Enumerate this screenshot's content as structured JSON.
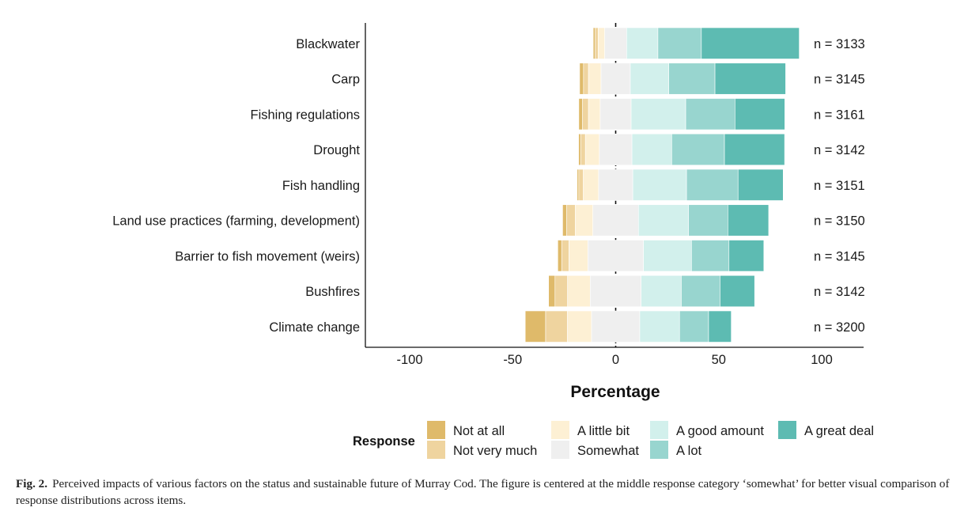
{
  "chart_data": {
    "type": "bar",
    "subtype": "diverging-stacked-horizontal (likert)",
    "orientation": "horizontal",
    "centered_on": "Somewhat",
    "xlabel": "Percentage",
    "ylabel": "",
    "xlim": [
      -122,
      120
    ],
    "xticks": [
      -100,
      -50,
      0,
      50,
      100
    ],
    "xtick_labels": [
      "-100",
      "-50",
      "0",
      "50",
      "100"
    ],
    "grid": false,
    "zero_line": "dashed",
    "legend": {
      "title": "Response",
      "placement": "bottom",
      "entries": [
        "Not at all",
        "Not very much",
        "A little bit",
        "Somewhat",
        "A good amount",
        "A lot",
        "A great deal"
      ]
    },
    "series": [
      {
        "name": "Not at all",
        "color": "#dfba6a"
      },
      {
        "name": "Not very much",
        "color": "#efd49f"
      },
      {
        "name": "A little bit",
        "color": "#fdf0d4"
      },
      {
        "name": "Somewhat",
        "color": "#efefef"
      },
      {
        "name": "A good amount",
        "color": "#d2f0ec"
      },
      {
        "name": "A lot",
        "color": "#98d5cf"
      },
      {
        "name": "A great deal",
        "color": "#5dbbb2"
      }
    ],
    "categories": [
      "Blackwater",
      "Carp",
      "Fishing regulations",
      "Drought",
      "Fish handling",
      "Land use practices (farming, development)",
      "Barrier to fish movement (weirs)",
      "Bushfires",
      "Climate change"
    ],
    "n_labels": [
      "n = 3133",
      "n = 3145",
      "n = 3161",
      "n = 3142",
      "n = 3151",
      "n = 3150",
      "n = 3145",
      "n = 3142",
      "n = 3200"
    ],
    "values": [
      [
        1.0,
        1.4,
        3.2,
        10.6,
        15.2,
        21.1,
        47.5
      ],
      [
        1.9,
        2.4,
        6.1,
        14.2,
        18.7,
        22.4,
        34.3
      ],
      [
        1.7,
        3.0,
        5.7,
        15.0,
        26.5,
        23.9,
        24.2
      ],
      [
        1.0,
        2.3,
        6.8,
        15.8,
        19.3,
        25.6,
        29.2
      ],
      [
        0.8,
        2.2,
        7.4,
        16.6,
        26.1,
        25.0,
        21.9
      ],
      [
        2.0,
        4.1,
        8.6,
        22.1,
        24.3,
        19.1,
        19.8
      ],
      [
        1.9,
        3.5,
        9.2,
        27.0,
        23.3,
        18.2,
        16.9
      ],
      [
        3.1,
        6.1,
        11.0,
        24.7,
        19.5,
        18.8,
        16.8
      ],
      [
        9.9,
        10.5,
        11.8,
        23.4,
        19.3,
        14.1,
        11.0
      ]
    ]
  },
  "caption": {
    "figure_number": "Fig. 2.",
    "text": "Perceived impacts of various factors on the status and sustainable future of Murray Cod. The figure is centered at the middle response category ‘somewhat’ for better visual comparison of response distributions across items."
  }
}
